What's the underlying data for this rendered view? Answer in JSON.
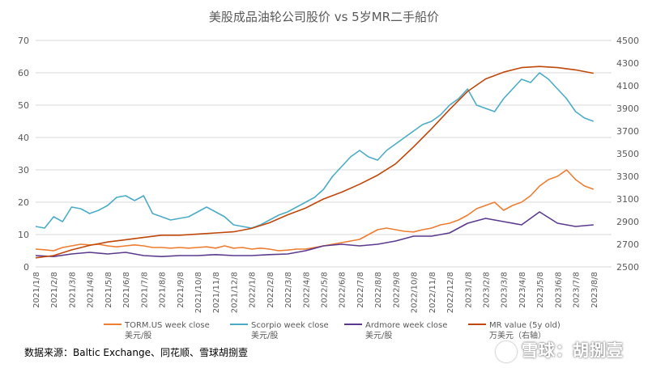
{
  "title": "美股成品油轮公司股价  vs 5岁MR二手船价",
  "source_note": "数据来源：Baltic Exchange、同花顺、雪球胡捌壹",
  "watermark": "雪球：胡捌壹",
  "colors": {
    "torm": "#ED7D31",
    "scorpio": "#4BACC6",
    "ardmore": "#5B3A8E",
    "mr": "#C0470A",
    "grid": "#d9d9d9",
    "axis_text": "#595959"
  },
  "chart_data": {
    "type": "line",
    "title": "美股成品油轮公司股价  vs 5岁MR二手船价",
    "y_left": {
      "min": 0,
      "max": 70,
      "ticks": [
        0,
        10,
        20,
        30,
        40,
        50,
        60,
        70
      ],
      "labels": [
        "0",
        "10",
        "20",
        "30",
        "40",
        "50",
        "60",
        "70"
      ]
    },
    "y_right": {
      "min": 2500,
      "max": 4500,
      "ticks": [
        2500,
        2700,
        2900,
        3100,
        3300,
        3500,
        3700,
        3900,
        4100,
        4300,
        4500
      ],
      "labels": [
        "2500",
        "2700",
        "2900",
        "3100",
        "3300",
        "3500",
        "3700",
        "3900",
        "4100",
        "4300",
        "4500"
      ]
    },
    "x_ticks": [
      "2021/1/8",
      "2021/2/8",
      "2021/3/8",
      "2021/4/8",
      "2021/5/8",
      "2021/6/8",
      "2021/7/8",
      "2021/8/8",
      "2021/9/8",
      "2021/10/8",
      "2021/11/8",
      "2021/12/8",
      "2022/1/8",
      "2022/2/8",
      "2022/3/8",
      "2022/4/8",
      "2022/5/8",
      "2022/6/8",
      "2022/7/8",
      "2022/8/8",
      "2022/9/8",
      "2022/10/8",
      "2022/11/8",
      "2022/12/8",
      "2023/1/8",
      "2023/2/8",
      "2023/3/8",
      "2023/4/8",
      "2023/5/8",
      "2023/6/8",
      "2023/7/8",
      "2023/8/8"
    ],
    "grid": true,
    "legend_position": "bottom",
    "series": [
      {
        "name": "TORM.US week close",
        "unit": "美元/股",
        "axis": "left",
        "color": "#ED7D31",
        "x": [
          0,
          0.5,
          1,
          1.5,
          2,
          2.5,
          3,
          3.5,
          4,
          4.5,
          5,
          5.5,
          6,
          6.5,
          7,
          7.5,
          8,
          8.5,
          9,
          9.5,
          10,
          10.5,
          11,
          11.5,
          12,
          12.5,
          13,
          13.5,
          14,
          14.5,
          15,
          15.5,
          16,
          16.5,
          17,
          17.5,
          18,
          18.5,
          19,
          19.5,
          20,
          20.5,
          21,
          21.5,
          22,
          22.5,
          23,
          23.5,
          24,
          24.5,
          25,
          25.5,
          26,
          26.5,
          27,
          27.5,
          28,
          28.5,
          29,
          29.5,
          30,
          30.5,
          31
        ],
        "values": [
          5.5,
          5.3,
          5.0,
          6.0,
          6.5,
          7.0,
          6.8,
          7.0,
          6.5,
          6.2,
          6.5,
          6.8,
          6.5,
          6.0,
          6.0,
          5.8,
          6.0,
          5.8,
          6.0,
          6.2,
          5.8,
          6.5,
          5.8,
          6.0,
          5.5,
          5.8,
          5.5,
          5.0,
          5.2,
          5.5,
          5.5,
          6.0,
          6.5,
          7.0,
          7.5,
          8.0,
          8.5,
          10.0,
          11.5,
          12.0,
          11.5,
          11.0,
          10.8,
          11.5,
          12.0,
          13.0,
          13.5,
          14.5,
          16.0,
          18.0,
          19.0,
          20.0,
          17.5,
          19.0,
          20.0,
          22.0,
          25.0,
          27.0,
          28.0,
          30.0,
          27.0,
          25.0,
          24.0
        ]
      },
      {
        "name": "Scorpio week close",
        "unit": "美元/股",
        "axis": "left",
        "color": "#4BACC6",
        "x": [
          0,
          0.5,
          1,
          1.5,
          2,
          2.5,
          3,
          3.5,
          4,
          4.5,
          5,
          5.5,
          6,
          6.5,
          7,
          7.5,
          8,
          8.5,
          9,
          9.5,
          10,
          10.5,
          11,
          11.5,
          12,
          12.5,
          13,
          13.5,
          14,
          14.5,
          15,
          15.5,
          16,
          16.5,
          17,
          17.5,
          18,
          18.5,
          19,
          19.5,
          20,
          20.5,
          21,
          21.5,
          22,
          22.5,
          23,
          23.5,
          24,
          24.5,
          25,
          25.5,
          26,
          26.5,
          27,
          27.5,
          28,
          28.5,
          29,
          29.5,
          30,
          30.5,
          31
        ],
        "values": [
          12.5,
          12.0,
          15.5,
          14.0,
          18.5,
          18.0,
          16.5,
          17.5,
          19.0,
          21.5,
          22.0,
          20.5,
          22.0,
          16.5,
          15.5,
          14.5,
          15.0,
          15.5,
          17.0,
          18.5,
          17.0,
          15.5,
          13.0,
          12.5,
          12.0,
          13.0,
          14.5,
          16.0,
          17.0,
          18.5,
          20.0,
          21.5,
          24.0,
          28.0,
          31.0,
          34.0,
          36.0,
          34.0,
          33.0,
          36.0,
          38.0,
          40.0,
          42.0,
          44.0,
          45.0,
          47.0,
          50.0,
          52.0,
          55.0,
          50.0,
          49.0,
          48.0,
          52.0,
          55.0,
          58.0,
          57.0,
          60.0,
          58.0,
          55.0,
          52.0,
          48.0,
          46.0,
          45.0
        ]
      },
      {
        "name": "Ardmore week close",
        "unit": "美元/股",
        "axis": "left",
        "color": "#5B3A8E",
        "x": [
          0,
          1,
          2,
          3,
          4,
          5,
          6,
          7,
          8,
          9,
          10,
          11,
          12,
          13,
          14,
          15,
          16,
          17,
          18,
          19,
          20,
          21,
          22,
          23,
          24,
          25,
          26,
          27,
          28,
          29,
          30,
          31
        ],
        "values": [
          3.5,
          3.2,
          4.0,
          4.5,
          4.0,
          4.5,
          3.5,
          3.2,
          3.5,
          3.5,
          3.8,
          3.5,
          3.5,
          3.8,
          4.0,
          5.0,
          6.5,
          7.0,
          6.5,
          7.0,
          8.0,
          9.5,
          9.5,
          10.5,
          13.5,
          15.0,
          14.0,
          13.0,
          17.0,
          13.5,
          12.5,
          13.0
        ]
      },
      {
        "name": "MR value (5y old)",
        "unit": "万美元（右轴）",
        "axis": "right",
        "color": "#C0470A",
        "x": [
          0,
          1,
          2,
          3,
          4,
          5,
          6,
          7,
          8,
          9,
          10,
          11,
          12,
          13,
          14,
          15,
          16,
          17,
          18,
          19,
          20,
          21,
          22,
          23,
          24,
          25,
          26,
          27,
          28,
          29,
          30,
          31
        ],
        "values": [
          2580,
          2600,
          2650,
          2690,
          2720,
          2740,
          2760,
          2780,
          2780,
          2790,
          2800,
          2810,
          2840,
          2890,
          2960,
          3020,
          3100,
          3160,
          3230,
          3310,
          3410,
          3560,
          3720,
          3890,
          4050,
          4160,
          4220,
          4260,
          4270,
          4260,
          4240,
          4210
        ]
      }
    ]
  },
  "legend": [
    {
      "label": "TORM.US week close",
      "unit": "美元/股"
    },
    {
      "label": "Scorpio week close",
      "unit": "美元/股"
    },
    {
      "label": "Ardmore week close",
      "unit": "美元/股"
    },
    {
      "label": "MR value (5y old)",
      "unit": "万美元（右轴）"
    }
  ]
}
